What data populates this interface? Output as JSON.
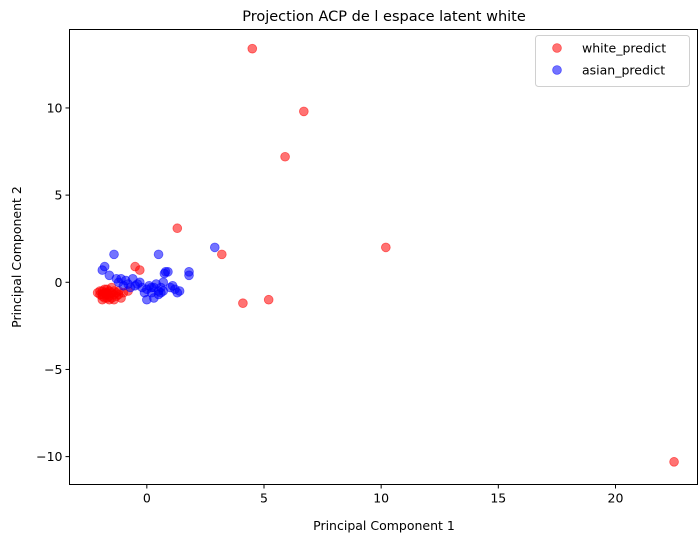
{
  "chart_data": {
    "type": "scatter",
    "title": "Projection ACP de l espace latent white",
    "xlabel": "Principal Component 1",
    "ylabel": "Principal Component 2",
    "xlim": [
      -3.3,
      23.5
    ],
    "ylim": [
      -11.6,
      14.5
    ],
    "xticks": [
      0,
      5,
      10,
      15,
      20
    ],
    "yticks": [
      -10,
      -5,
      0,
      5,
      10
    ],
    "xtick_labels": [
      "0",
      "5",
      "10",
      "15",
      "20"
    ],
    "ytick_labels": [
      "−10",
      "−5",
      "0",
      "5",
      "10"
    ],
    "grid": false,
    "legend_position": "top-right",
    "point_alpha": 0.55,
    "series": [
      {
        "name": "white_predict",
        "color": "#ff0000",
        "points": [
          [
            4.5,
            13.4
          ],
          [
            6.7,
            9.8
          ],
          [
            5.9,
            7.2
          ],
          [
            1.3,
            3.1
          ],
          [
            10.2,
            2.0
          ],
          [
            3.2,
            1.6
          ],
          [
            -0.5,
            0.9
          ],
          [
            -0.3,
            0.7
          ],
          [
            4.1,
            -1.2
          ],
          [
            5.2,
            -1.0
          ],
          [
            22.5,
            -10.3
          ],
          [
            -2.1,
            -0.6
          ],
          [
            -2.0,
            -0.7
          ],
          [
            -1.9,
            -0.5
          ],
          [
            -1.9,
            -0.8
          ],
          [
            -1.8,
            -0.6
          ],
          [
            -1.8,
            -0.4
          ],
          [
            -1.7,
            -0.7
          ],
          [
            -1.7,
            -0.9
          ],
          [
            -1.6,
            -0.5
          ],
          [
            -1.6,
            -0.8
          ],
          [
            -1.5,
            -0.6
          ],
          [
            -1.5,
            -0.9
          ],
          [
            -1.4,
            -0.7
          ],
          [
            -1.4,
            -1.0
          ],
          [
            -1.3,
            -0.6
          ],
          [
            -1.3,
            -0.8
          ],
          [
            -1.2,
            -0.7
          ],
          [
            -1.1,
            -0.9
          ],
          [
            -1.9,
            -1.0
          ],
          [
            -1.8,
            -0.9
          ],
          [
            -1.6,
            -1.0
          ],
          [
            -2.0,
            -0.5
          ],
          [
            -1.7,
            -0.4
          ],
          [
            -1.5,
            -0.3
          ],
          [
            -1.2,
            -0.5
          ],
          [
            -0.8,
            -0.5
          ],
          [
            -1.0,
            -0.6
          ],
          [
            -1.9,
            -0.7
          ],
          [
            -1.7,
            -0.6
          ],
          [
            -1.4,
            -0.5
          ]
        ]
      },
      {
        "name": "asian_predict",
        "color": "#0000ff",
        "points": [
          [
            -1.4,
            1.6
          ],
          [
            0.5,
            1.6
          ],
          [
            2.9,
            2.0
          ],
          [
            -1.8,
            0.9
          ],
          [
            -1.9,
            0.7
          ],
          [
            -1.6,
            0.4
          ],
          [
            -1.3,
            0.2
          ],
          [
            -1.1,
            0.2
          ],
          [
            -1.2,
            0.0
          ],
          [
            -0.9,
            0.1
          ],
          [
            -0.8,
            -0.1
          ],
          [
            -0.6,
            0.2
          ],
          [
            -0.5,
            -0.2
          ],
          [
            -0.3,
            0.0
          ],
          [
            -0.2,
            -0.3
          ],
          [
            0.0,
            -0.4
          ],
          [
            0.1,
            -0.2
          ],
          [
            0.2,
            -0.6
          ],
          [
            0.3,
            -0.3
          ],
          [
            0.4,
            -0.1
          ],
          [
            0.5,
            -0.5
          ],
          [
            0.6,
            -0.3
          ],
          [
            0.7,
            0.0
          ],
          [
            0.7,
            -0.5
          ],
          [
            0.8,
            0.6
          ],
          [
            0.75,
            0.5
          ],
          [
            0.9,
            0.6
          ],
          [
            1.0,
            -0.3
          ],
          [
            1.1,
            -0.2
          ],
          [
            1.2,
            -0.4
          ],
          [
            1.3,
            -0.6
          ],
          [
            1.4,
            -0.5
          ],
          [
            1.8,
            0.4
          ],
          [
            1.8,
            0.6
          ],
          [
            -0.1,
            -0.6
          ],
          [
            0.0,
            -1.0
          ],
          [
            0.3,
            -0.9
          ],
          [
            0.5,
            -0.7
          ],
          [
            -1.0,
            -0.2
          ],
          [
            -0.7,
            -0.3
          ],
          [
            -0.4,
            -0.1
          ],
          [
            0.2,
            -0.3
          ],
          [
            0.6,
            -0.6
          ]
        ]
      }
    ]
  }
}
